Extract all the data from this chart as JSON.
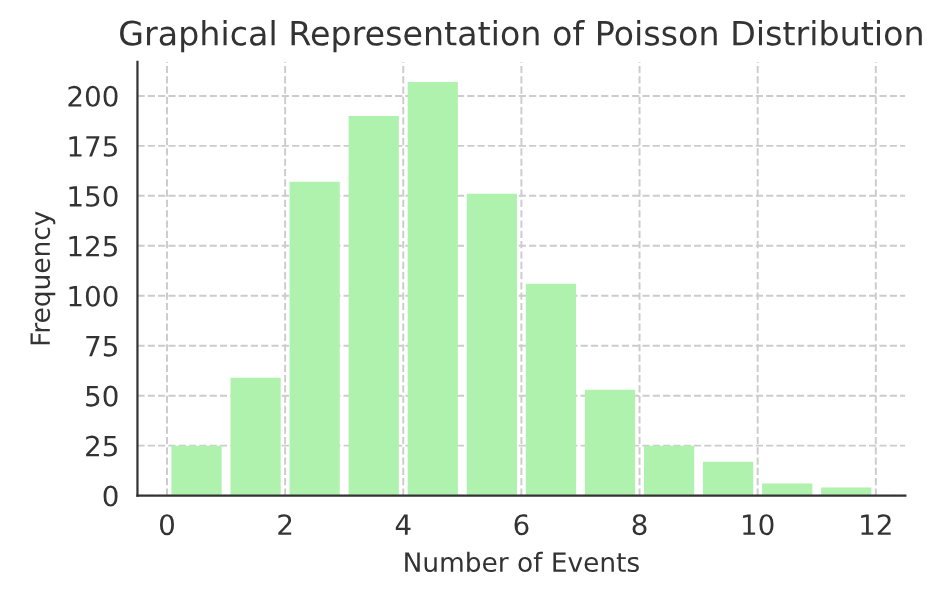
{
  "chart_data": {
    "type": "histogram",
    "title": "Graphical Representation of Poisson Distribution",
    "xlabel": "Number of Events",
    "ylabel": "Frequency",
    "bins": [
      0,
      1,
      2,
      3,
      4,
      5,
      6,
      7,
      8,
      9,
      10,
      11,
      12
    ],
    "values": [
      25,
      59,
      157,
      190,
      207,
      151,
      106,
      53,
      25,
      17,
      6,
      4
    ],
    "color": "#aef2ae",
    "xlim": [
      -0.5,
      12.5
    ],
    "xticks": [
      0,
      2,
      4,
      6,
      8,
      10,
      12
    ],
    "ylim": [
      0,
      217
    ],
    "yticks": [
      0,
      25,
      50,
      75,
      100,
      125,
      150,
      175,
      200
    ],
    "grid": true
  }
}
